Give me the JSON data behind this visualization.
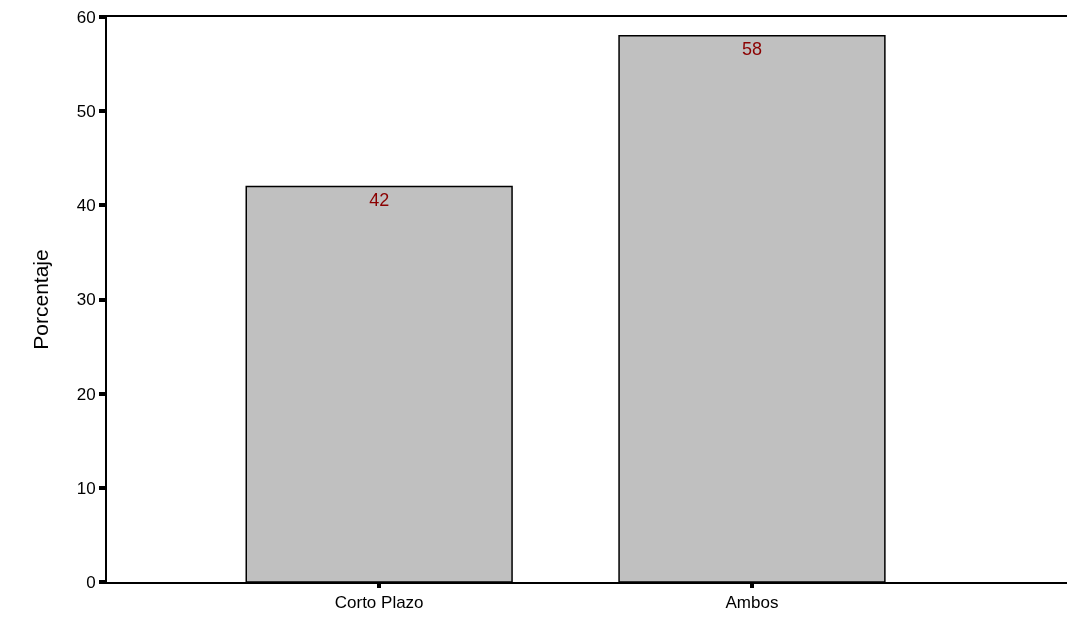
{
  "chart_data": {
    "type": "bar",
    "ylabel": "Porcentaje",
    "categories": [
      "Corto Plazo",
      "Ambos"
    ],
    "values": [
      42,
      58
    ],
    "color": "#c0c0c0",
    "ylim": [
      0,
      60
    ],
    "yticks": [
      0,
      10,
      20,
      30,
      40,
      50,
      60
    ],
    "data_labels": true
  }
}
